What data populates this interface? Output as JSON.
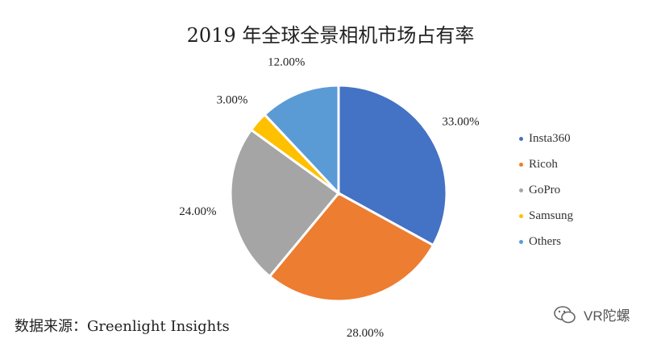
{
  "chart_data": {
    "type": "pie",
    "title": "2019 年全球全景相机市场占有率",
    "labels": [
      "Insta360",
      "Ricoh",
      "GoPro",
      "Samsung",
      "Others"
    ],
    "values": [
      33.0,
      28.0,
      24.0,
      3.0,
      12.0
    ],
    "data_labels": [
      "33.00%",
      "28.00%",
      "24.00%",
      "3.00%",
      "12.00%"
    ],
    "colors": [
      "#4472C4",
      "#ED7D31",
      "#A5A5A5",
      "#FFC000",
      "#5B9BD5"
    ],
    "legend_position": "right",
    "start_angle": "top, clockwise"
  },
  "source": "数据来源：Greenlight Insights",
  "watermark": {
    "icon": "wechat-logo-icon",
    "text": "VR陀螺"
  }
}
